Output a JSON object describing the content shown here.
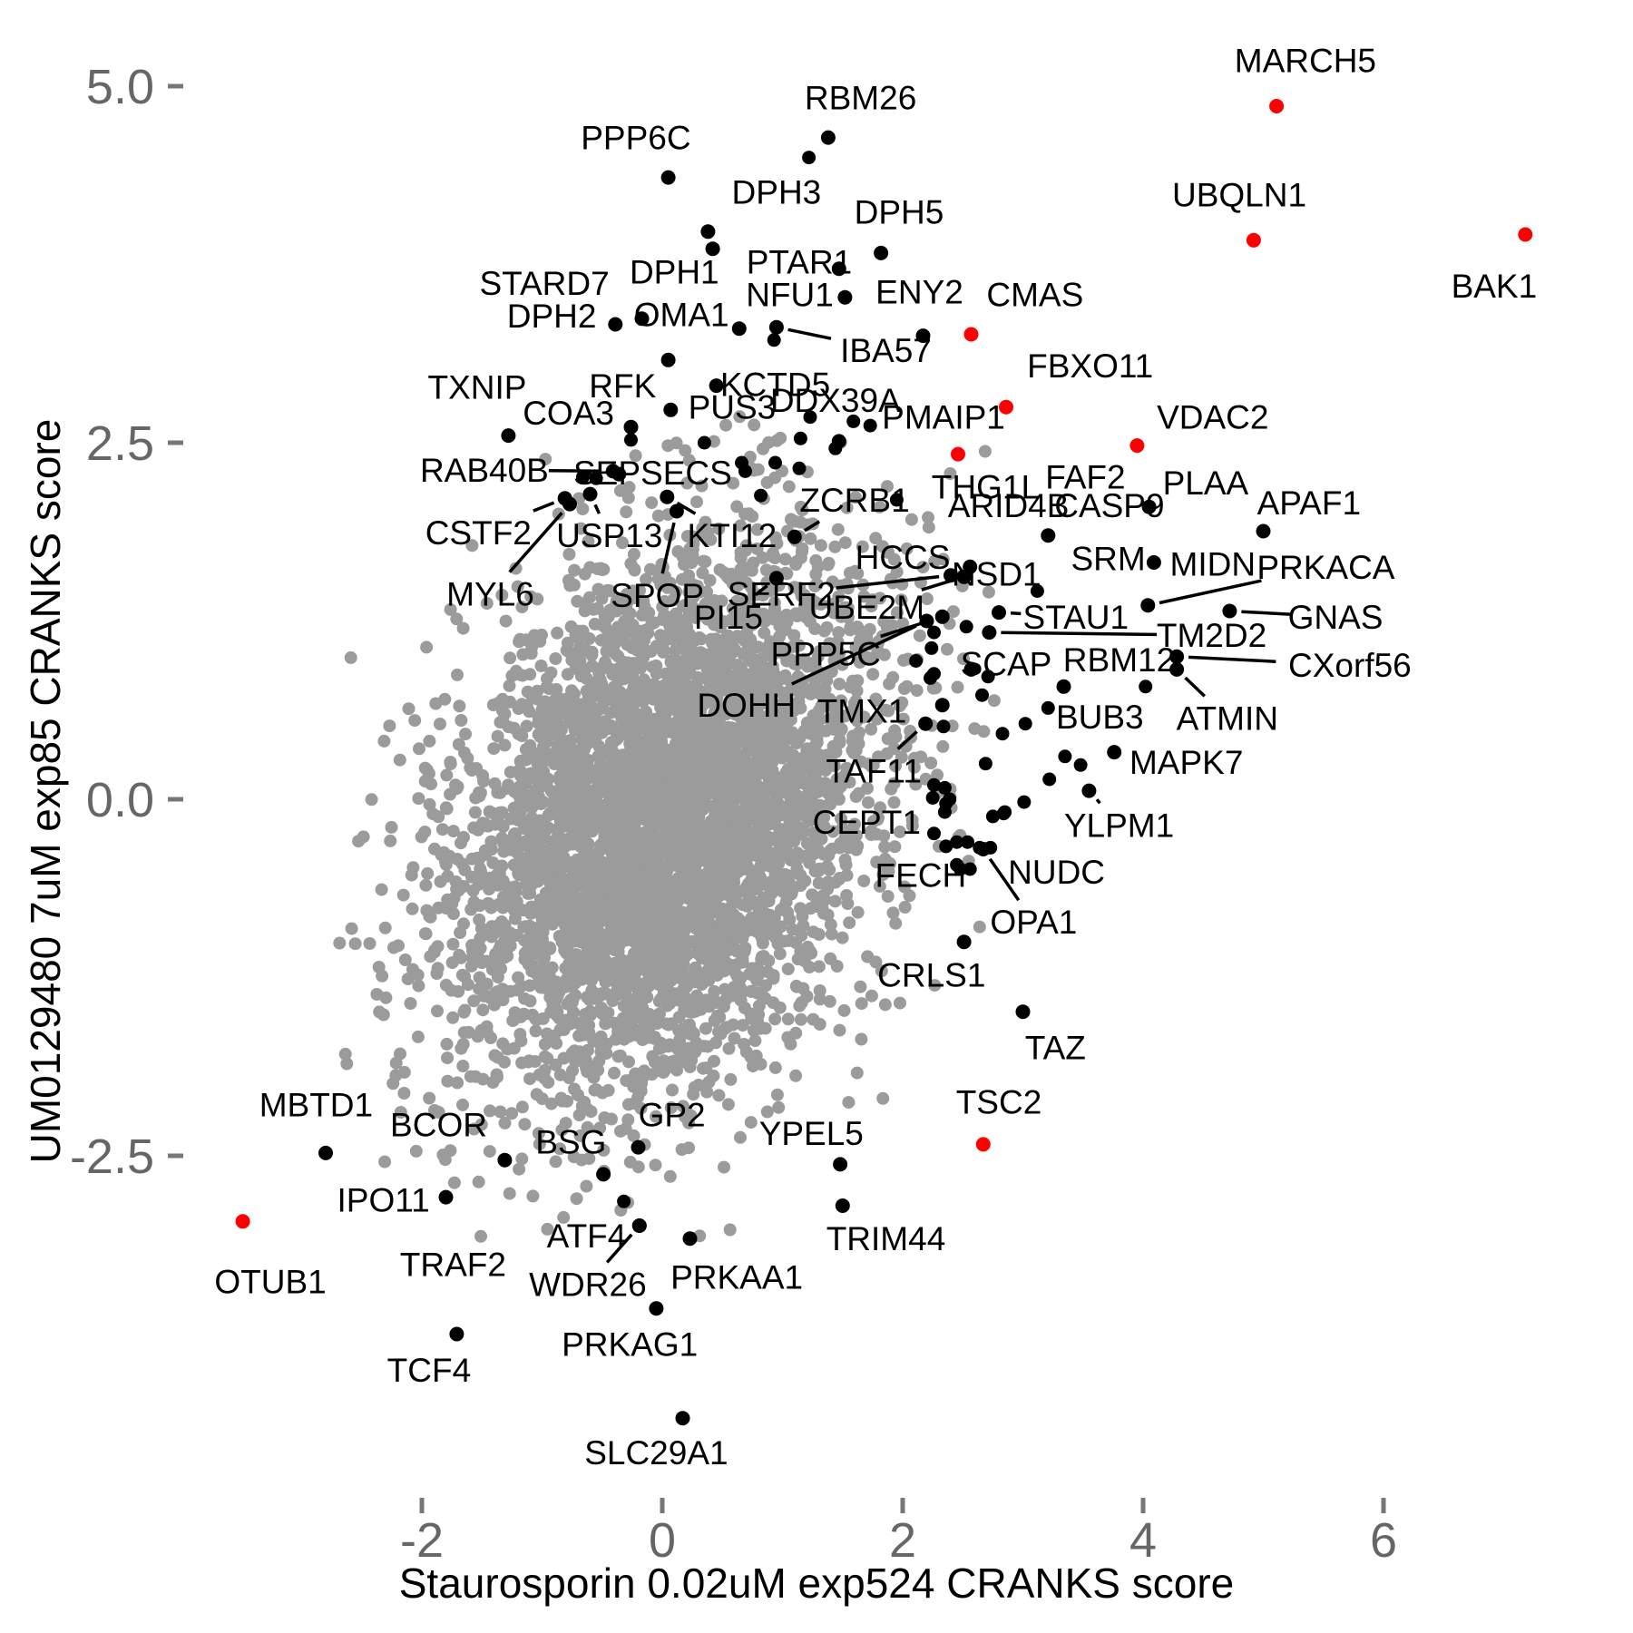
{
  "chart_data": {
    "type": "scatter",
    "title": "",
    "xlabel": "Staurosporin 0.02uM exp524 CRANKS score",
    "ylabel": "UM0129480 7uM exp85 CRANKS score",
    "x_ticks": [
      {
        "v": -2,
        "label": "-2"
      },
      {
        "v": 0,
        "label": "0"
      },
      {
        "v": 2,
        "label": "2"
      },
      {
        "v": 4,
        "label": "4"
      },
      {
        "v": 6,
        "label": "6"
      }
    ],
    "y_ticks": [
      {
        "v": 5.0,
        "label": "5.0"
      },
      {
        "v": 2.5,
        "label": "2.5"
      },
      {
        "v": 0.0,
        "label": "0.0"
      },
      {
        "v": -2.5,
        "label": "-2.5"
      }
    ],
    "xlim": [
      -3.9,
      7.9
    ],
    "ylim": [
      -5.1,
      5.5
    ],
    "grid": false,
    "colors": {
      "highlight": "#FF0000",
      "labeled": "#000000",
      "cloud": "#9B9B9B",
      "tick_text": "#666666",
      "tick_mark": "#777777",
      "leader": "#000000"
    },
    "labeled_points": [
      {
        "gene": "MARCH5",
        "x": 5.11,
        "y": 4.86,
        "c": "red",
        "lx": 5.35,
        "ly": 5.18,
        "lead": 0
      },
      {
        "gene": "UBQLN1",
        "x": 4.92,
        "y": 3.92,
        "c": "red",
        "lx": 4.8,
        "ly": 4.24,
        "lead": 0
      },
      {
        "gene": "BAK1",
        "x": 7.18,
        "y": 3.96,
        "c": "red",
        "lx": 6.92,
        "ly": 3.6,
        "lead": 0
      },
      {
        "gene": "CMAS",
        "x": 2.57,
        "y": 3.26,
        "c": "red",
        "lx": 3.1,
        "ly": 3.54,
        "lead": 0
      },
      {
        "gene": "FBXO11",
        "x": 2.86,
        "y": 2.75,
        "c": "red",
        "lx": 3.56,
        "ly": 3.04,
        "lead": 0
      },
      {
        "gene": "PMAIP1",
        "x": 2.46,
        "y": 2.42,
        "c": "red",
        "lx": 2.34,
        "ly": 2.68,
        "lead": 0
      },
      {
        "gene": "VDAC2",
        "x": 3.95,
        "y": 2.48,
        "c": "red",
        "lx": 4.58,
        "ly": 2.68,
        "lead": 0
      },
      {
        "gene": "TSC2",
        "x": 2.67,
        "y": -2.42,
        "c": "red",
        "lx": 2.8,
        "ly": -2.12,
        "lead": 0
      },
      {
        "gene": "OTUB1",
        "x": -3.49,
        "y": -2.96,
        "c": "red",
        "lx": -3.26,
        "ly": -3.38,
        "lead": 0
      },
      {
        "gene": "RBM26",
        "x": 1.38,
        "y": 4.64,
        "c": "black",
        "lx": 1.65,
        "ly": 4.92,
        "lead": 0
      },
      {
        "gene": "PPP6C",
        "x": 0.05,
        "y": 4.36,
        "c": "black",
        "lx": -0.22,
        "ly": 4.64,
        "lead": 0
      },
      {
        "gene": "DPH3",
        "x": 0.38,
        "y": 3.98,
        "c": "black",
        "lx": 0.95,
        "ly": 4.26,
        "lead": 0
      },
      {
        "gene": "DPH5",
        "x": 1.82,
        "y": 3.83,
        "c": "black",
        "lx": 1.97,
        "ly": 4.12,
        "lead": 0
      },
      {
        "gene": "PTAR1",
        "x": 1.52,
        "y": 3.52,
        "c": "black",
        "lx": 1.14,
        "ly": 3.77,
        "lead": 0
      },
      {
        "gene": "DPH1",
        "x": 0.42,
        "y": 3.86,
        "c": "black",
        "lx": 0.1,
        "ly": 3.7,
        "lead": 0
      },
      {
        "gene": "STARD7",
        "x": -0.17,
        "y": 3.37,
        "c": "black",
        "lx": -0.98,
        "ly": 3.62,
        "lead": 0
      },
      {
        "gene": "NFU1",
        "x": 1.47,
        "y": 3.72,
        "c": "black",
        "lx": 1.06,
        "ly": 3.54,
        "lead": 0
      },
      {
        "gene": "ENY2",
        "x": 2.17,
        "y": 3.25,
        "c": "black",
        "lx": 2.14,
        "ly": 3.56,
        "lead": 0
      },
      {
        "gene": "OMA1",
        "x": 0.64,
        "y": 3.3,
        "c": "black",
        "lx": 0.16,
        "ly": 3.4,
        "lead": 0
      },
      {
        "gene": "DPH2",
        "x": -0.39,
        "y": 3.33,
        "c": "black",
        "lx": -0.92,
        "ly": 3.39,
        "lead": 0
      },
      {
        "gene": "IBA57",
        "x": 0.95,
        "y": 3.31,
        "c": "black",
        "lx": 1.86,
        "ly": 3.15,
        "lead": 1
      },
      {
        "gene": "KCTD5",
        "x": 0.45,
        "y": 2.9,
        "c": "black",
        "lx": 0.94,
        "ly": 2.91,
        "lead": 0
      },
      {
        "gene": "RFK",
        "x": 0.05,
        "y": 3.08,
        "c": "black",
        "lx": -0.33,
        "ly": 2.9,
        "lead": 0
      },
      {
        "gene": "TXNIP",
        "x": -1.28,
        "y": 2.55,
        "c": "black",
        "lx": -1.54,
        "ly": 2.89,
        "lead": 0
      },
      {
        "gene": "COA3",
        "x": -0.26,
        "y": 2.61,
        "c": "black",
        "lx": -0.78,
        "ly": 2.71,
        "lead": 0
      },
      {
        "gene": "PUS3",
        "x": 0.07,
        "y": 2.73,
        "c": "black",
        "lx": 0.58,
        "ly": 2.75,
        "lead": 0
      },
      {
        "gene": "DDX39A",
        "x": 1.47,
        "y": 2.51,
        "c": "black",
        "lx": 1.44,
        "ly": 2.8,
        "lead": 0
      },
      {
        "gene": "THG1L",
        "x": null,
        "y": null,
        "c": "black",
        "lx": 2.69,
        "ly": 2.19,
        "lead": 0
      },
      {
        "gene": "FAF2",
        "x": null,
        "y": null,
        "c": "black",
        "lx": 3.52,
        "ly": 2.26,
        "lead": 0
      },
      {
        "gene": "PLAA",
        "x": null,
        "y": null,
        "c": "black",
        "lx": 4.52,
        "ly": 2.22,
        "lead": 0
      },
      {
        "gene": "CASP9",
        "x": 4.05,
        "y": 2.05,
        "c": "black",
        "lx": 3.72,
        "ly": 2.06,
        "lead": 0
      },
      {
        "gene": "ARID4B",
        "x": 3.21,
        "y": 1.85,
        "c": "black",
        "lx": 2.88,
        "ly": 2.06,
        "lead": 0
      },
      {
        "gene": "APAF1",
        "x": 5.0,
        "y": 1.88,
        "c": "black",
        "lx": 5.38,
        "ly": 2.08,
        "lead": 0
      },
      {
        "gene": "RAB40B",
        "x": -0.41,
        "y": 2.3,
        "c": "black",
        "lx": -1.48,
        "ly": 2.31,
        "lead": 1
      },
      {
        "gene": "SEPSECS",
        "x": -0.36,
        "y": 2.28,
        "c": "black",
        "lx": -0.08,
        "ly": 2.29,
        "lead": 0
      },
      {
        "gene": "ZCRB1",
        "x": 1.1,
        "y": 1.84,
        "c": "black",
        "lx": 1.6,
        "ly": 2.1,
        "lead": 1
      },
      {
        "gene": "CSTF2",
        "x": -0.81,
        "y": 2.11,
        "c": "black",
        "lx": -1.53,
        "ly": 1.87,
        "lead": 1
      },
      {
        "gene": "USP13",
        "x": -0.6,
        "y": 2.14,
        "c": "black",
        "lx": -0.44,
        "ly": 1.85,
        "lead": 1
      },
      {
        "gene": "KTI12",
        "x": 0.04,
        "y": 2.12,
        "c": "black",
        "lx": 0.58,
        "ly": 1.85,
        "lead": 1
      },
      {
        "gene": "MYL6",
        "x": -0.77,
        "y": 2.07,
        "c": "black",
        "lx": -1.43,
        "ly": 1.44,
        "lead": 1
      },
      {
        "gene": "SPOP",
        "x": 0.12,
        "y": 2.02,
        "c": "black",
        "lx": -0.04,
        "ly": 1.43,
        "lead": 1
      },
      {
        "gene": "SERF2",
        "x": 2.4,
        "y": 1.57,
        "c": "black",
        "lx": 0.99,
        "ly": 1.44,
        "lead": 1
      },
      {
        "gene": "HCCS",
        "x": null,
        "y": null,
        "c": "black",
        "lx": 2.0,
        "ly": 1.7,
        "lead": 0
      },
      {
        "gene": "NSD1",
        "x": 2.56,
        "y": 1.63,
        "c": "black",
        "lx": 2.78,
        "ly": 1.58,
        "lead": 0
      },
      {
        "gene": "SRM",
        "x": 4.09,
        "y": 1.66,
        "c": "black",
        "lx": 3.71,
        "ly": 1.69,
        "lead": 0
      },
      {
        "gene": "MIDN",
        "x": null,
        "y": null,
        "c": "black",
        "lx": 4.58,
        "ly": 1.65,
        "lead": 0
      },
      {
        "gene": "PRKACA",
        "x": 4.04,
        "y": 1.36,
        "c": "black",
        "lx": 5.52,
        "ly": 1.63,
        "lead": 1
      },
      {
        "gene": "UBE2M",
        "x": 2.51,
        "y": 1.56,
        "c": "black",
        "lx": 1.7,
        "ly": 1.35,
        "lead": 1
      },
      {
        "gene": "PI15",
        "x": 0.95,
        "y": 1.55,
        "c": "black",
        "lx": 0.55,
        "ly": 1.28,
        "lead": 1
      },
      {
        "gene": "STAU1",
        "x": 2.8,
        "y": 1.31,
        "c": "black",
        "lx": 3.44,
        "ly": 1.28,
        "lead": 1
      },
      {
        "gene": "GNAS",
        "x": 4.72,
        "y": 1.32,
        "c": "black",
        "lx": 5.6,
        "ly": 1.28,
        "lead": 1
      },
      {
        "gene": "TM2D2",
        "x": 2.72,
        "y": 1.17,
        "c": "black",
        "lx": 4.57,
        "ly": 1.15,
        "lead": 1
      },
      {
        "gene": "PPP5C",
        "x": 2.33,
        "y": 1.28,
        "c": "black",
        "lx": 1.36,
        "ly": 1.02,
        "lead": 1
      },
      {
        "gene": "DOHH",
        "x": 2.2,
        "y": 1.25,
        "c": "black",
        "lx": 0.7,
        "ly": 0.66,
        "lead": 1
      },
      {
        "gene": "SCAP",
        "x": 2.57,
        "y": 0.91,
        "c": "black",
        "lx": 2.86,
        "ly": 0.95,
        "lead": 0
      },
      {
        "gene": "RBM12",
        "x": null,
        "y": null,
        "c": "black",
        "lx": 3.8,
        "ly": 0.98,
        "lead": 0
      },
      {
        "gene": "CXorf56",
        "x": 4.28,
        "y": 1.0,
        "c": "black",
        "lx": 5.72,
        "ly": 0.94,
        "lead": 1
      },
      {
        "gene": "ATMIN",
        "x": 4.28,
        "y": 0.91,
        "c": "black",
        "lx": 4.7,
        "ly": 0.57,
        "lead": 1
      },
      {
        "gene": "TMX1",
        "x": 2.33,
        "y": 0.66,
        "c": "black",
        "lx": 1.66,
        "ly": 0.62,
        "lead": 0
      },
      {
        "gene": "TAF11",
        "x": 2.19,
        "y": 0.53,
        "c": "black",
        "lx": 1.76,
        "ly": 0.2,
        "lead": 1
      },
      {
        "gene": "BUB3",
        "x": 3.34,
        "y": 0.79,
        "c": "black",
        "lx": 3.64,
        "ly": 0.58,
        "lead": 0
      },
      {
        "gene": "MAPK7",
        "x": 3.76,
        "y": 0.33,
        "c": "black",
        "lx": 4.36,
        "ly": 0.26,
        "lead": 0
      },
      {
        "gene": "YLPM1",
        "x": 3.55,
        "y": 0.06,
        "c": "black",
        "lx": 3.8,
        "ly": -0.18,
        "lead": 1
      },
      {
        "gene": "CEPT1",
        "x": null,
        "y": null,
        "c": "black",
        "lx": 1.7,
        "ly": -0.16,
        "lead": 0
      },
      {
        "gene": "FECH",
        "x": null,
        "y": null,
        "c": "black",
        "lx": 2.15,
        "ly": -0.53,
        "lead": 0
      },
      {
        "gene": "NUDC",
        "x": null,
        "y": null,
        "c": "black",
        "lx": 3.28,
        "ly": -0.51,
        "lead": 0
      },
      {
        "gene": "OPA1",
        "x": 2.67,
        "y": -0.35,
        "c": "black",
        "lx": 3.09,
        "ly": -0.86,
        "lead": 1
      },
      {
        "gene": "CRLS1",
        "x": 2.51,
        "y": -1.0,
        "c": "black",
        "lx": 2.24,
        "ly": -1.23,
        "lead": 0
      },
      {
        "gene": "TAZ",
        "x": 3.0,
        "y": -1.49,
        "c": "black",
        "lx": 3.27,
        "ly": -1.74,
        "lead": 0
      },
      {
        "gene": "MBTD1",
        "x": -2.8,
        "y": -2.48,
        "c": "black",
        "lx": -2.88,
        "ly": -2.14,
        "lead": 0
      },
      {
        "gene": "BCOR",
        "x": -1.31,
        "y": -2.53,
        "c": "black",
        "lx": -1.86,
        "ly": -2.28,
        "lead": 0
      },
      {
        "gene": "BSG",
        "x": -0.49,
        "y": -2.63,
        "c": "black",
        "lx": -0.76,
        "ly": -2.4,
        "lead": 0
      },
      {
        "gene": "GP2",
        "x": -0.2,
        "y": -2.44,
        "c": "black",
        "lx": 0.08,
        "ly": -2.21,
        "lead": 0
      },
      {
        "gene": "YPEL5",
        "x": 1.48,
        "y": -2.56,
        "c": "black",
        "lx": 1.24,
        "ly": -2.34,
        "lead": 0
      },
      {
        "gene": "IPO11",
        "x": -1.8,
        "y": -2.79,
        "c": "black",
        "lx": -2.32,
        "ly": -2.81,
        "lead": 0
      },
      {
        "gene": "TRAF2",
        "x": null,
        "y": null,
        "c": "black",
        "lx": -1.74,
        "ly": -3.26,
        "lead": 0
      },
      {
        "gene": "ATF4",
        "x": -0.19,
        "y": -2.99,
        "c": "black",
        "lx": -0.63,
        "ly": -3.06,
        "lead": 0
      },
      {
        "gene": "WDR26",
        "x": -0.19,
        "y": -2.99,
        "c": "black",
        "lx": -0.62,
        "ly": -3.4,
        "lead": 1
      },
      {
        "gene": "PRKAA1",
        "x": 0.23,
        "y": -3.08,
        "c": "black",
        "lx": 0.62,
        "ly": -3.35,
        "lead": 0
      },
      {
        "gene": "TRIM44",
        "x": 1.5,
        "y": -2.85,
        "c": "black",
        "lx": 1.86,
        "ly": -3.08,
        "lead": 0
      },
      {
        "gene": "TCF4",
        "x": -1.71,
        "y": -3.75,
        "c": "black",
        "lx": -1.94,
        "ly": -4.0,
        "lead": 0
      },
      {
        "gene": "PRKAG1",
        "x": -0.05,
        "y": -3.57,
        "c": "black",
        "lx": -0.27,
        "ly": -3.82,
        "lead": 0
      },
      {
        "gene": "SLC29A1",
        "x": 0.17,
        "y": -4.34,
        "c": "black",
        "lx": -0.05,
        "ly": -4.58,
        "lead": 0
      }
    ],
    "extra_black_points": [
      [
        1.22,
        4.5
      ],
      [
        0.93,
        3.22
      ],
      [
        1.23,
        2.68
      ],
      [
        1.59,
        2.65
      ],
      [
        1.73,
        2.62
      ],
      [
        1.15,
        2.53
      ],
      [
        1.44,
        2.46
      ],
      [
        0.66,
        2.36
      ],
      [
        0.69,
        2.3
      ],
      [
        0.94,
        2.36
      ],
      [
        1.14,
        2.32
      ],
      [
        0.82,
        2.13
      ],
      [
        0.35,
        2.5
      ],
      [
        -0.26,
        2.52
      ],
      [
        -0.66,
        2.26
      ],
      [
        -0.55,
        2.25
      ],
      [
        1.95,
        2.1
      ],
      [
        3.12,
        1.46
      ],
      [
        2.53,
        1.21
      ],
      [
        2.26,
        1.17
      ],
      [
        2.24,
        1.06
      ],
      [
        2.26,
        0.88
      ],
      [
        2.71,
        0.86
      ],
      [
        2.11,
        0.97
      ],
      [
        2.23,
        0.85
      ],
      [
        2.66,
        0.73
      ],
      [
        3.21,
        0.64
      ],
      [
        4.02,
        0.79
      ],
      [
        3.02,
        0.53
      ],
      [
        2.83,
        0.46
      ],
      [
        2.34,
        0.51
      ],
      [
        2.69,
        0.25
      ],
      [
        3.22,
        0.14
      ],
      [
        3.01,
        -0.02
      ],
      [
        2.84,
        -0.1
      ],
      [
        2.26,
        0.1
      ],
      [
        2.35,
        0.08
      ],
      [
        2.36,
        -0.03
      ],
      [
        2.35,
        -0.09
      ],
      [
        2.25,
        0.01
      ],
      [
        2.39,
        0.0
      ],
      [
        3.35,
        0.3
      ],
      [
        3.48,
        0.24
      ],
      [
        2.75,
        -0.12
      ],
      [
        2.85,
        -0.09
      ],
      [
        2.45,
        -0.3
      ],
      [
        2.54,
        -0.3
      ],
      [
        2.64,
        -0.34
      ],
      [
        2.73,
        -0.34
      ],
      [
        2.48,
        -0.49
      ],
      [
        2.56,
        -0.49
      ],
      [
        2.26,
        -0.24
      ],
      [
        2.36,
        -0.33
      ],
      [
        2.45,
        -0.46
      ],
      [
        -0.32,
        -2.82
      ]
    ],
    "cloud": {
      "count": 4600,
      "center": [
        0.05,
        -0.15
      ],
      "sd": [
        0.88,
        0.92
      ],
      "corr": 0.28,
      "fringe_frac": 0.08,
      "fringe_scale": 1.45,
      "seed": 7,
      "clip": {
        "xmin": -3.35,
        "xmax": 2.8,
        "ymin": -3.1,
        "ymax": 2.8
      }
    }
  }
}
